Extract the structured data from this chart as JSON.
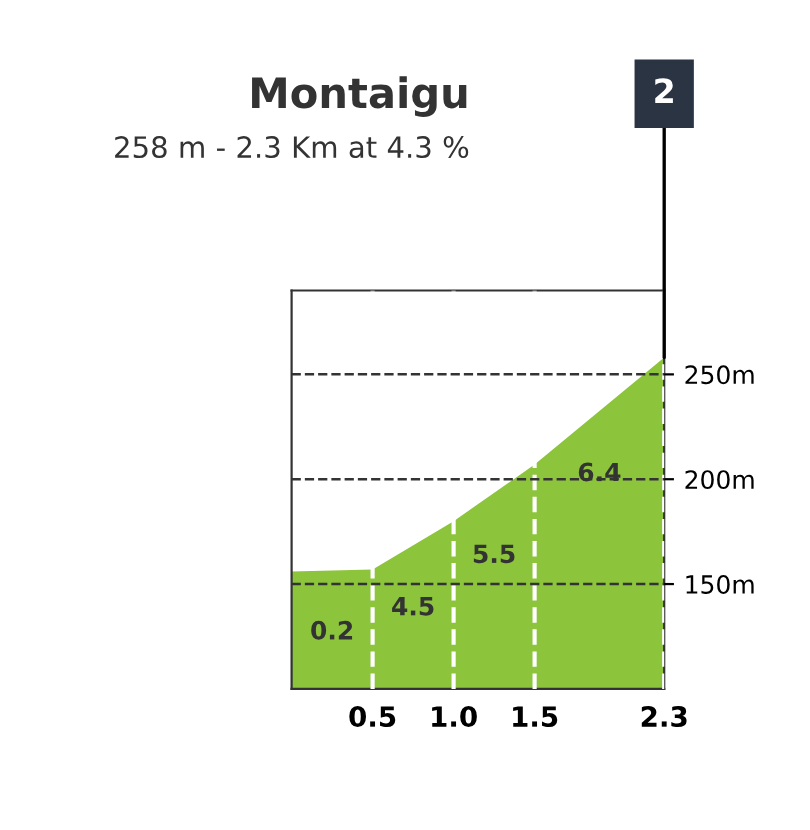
{
  "chart_data": {
    "type": "area",
    "title": "Montaigu",
    "subtitle": "258 m - 2.3 Km at 4.3 %",
    "x": [
      0,
      0.5,
      1.0,
      1.5,
      2.3
    ],
    "series": [
      {
        "color": "#8cc43c",
        "values": [
          156,
          157,
          180,
          207,
          258
        ]
      }
    ],
    "xlim": [
      0,
      2.3
    ],
    "xticks": [
      {
        "value": 0.5,
        "label": "0.5"
      },
      {
        "value": 1.0,
        "label": "1.0"
      },
      {
        "value": 1.5,
        "label": "1.5"
      },
      {
        "value": 2.3,
        "label": "2.3"
      }
    ],
    "ylim": [
      100,
      290
    ],
    "yticks": [
      {
        "value": 150,
        "label": "150m"
      },
      {
        "value": 200,
        "label": "200m"
      },
      {
        "value": 250,
        "label": "250m"
      }
    ],
    "grid": true,
    "annotations": [
      {
        "text": "0.2",
        "x": 0.25,
        "y": 156.5
      },
      {
        "text": "4.5",
        "x": 0.75,
        "y": 168
      },
      {
        "text": "5.5",
        "x": 1.25,
        "y": 193
      },
      {
        "text": "6.4",
        "x": 1.9,
        "y": 232
      },
      {
        "text": "2",
        "x": 2.3,
        "y": 258
      }
    ]
  }
}
